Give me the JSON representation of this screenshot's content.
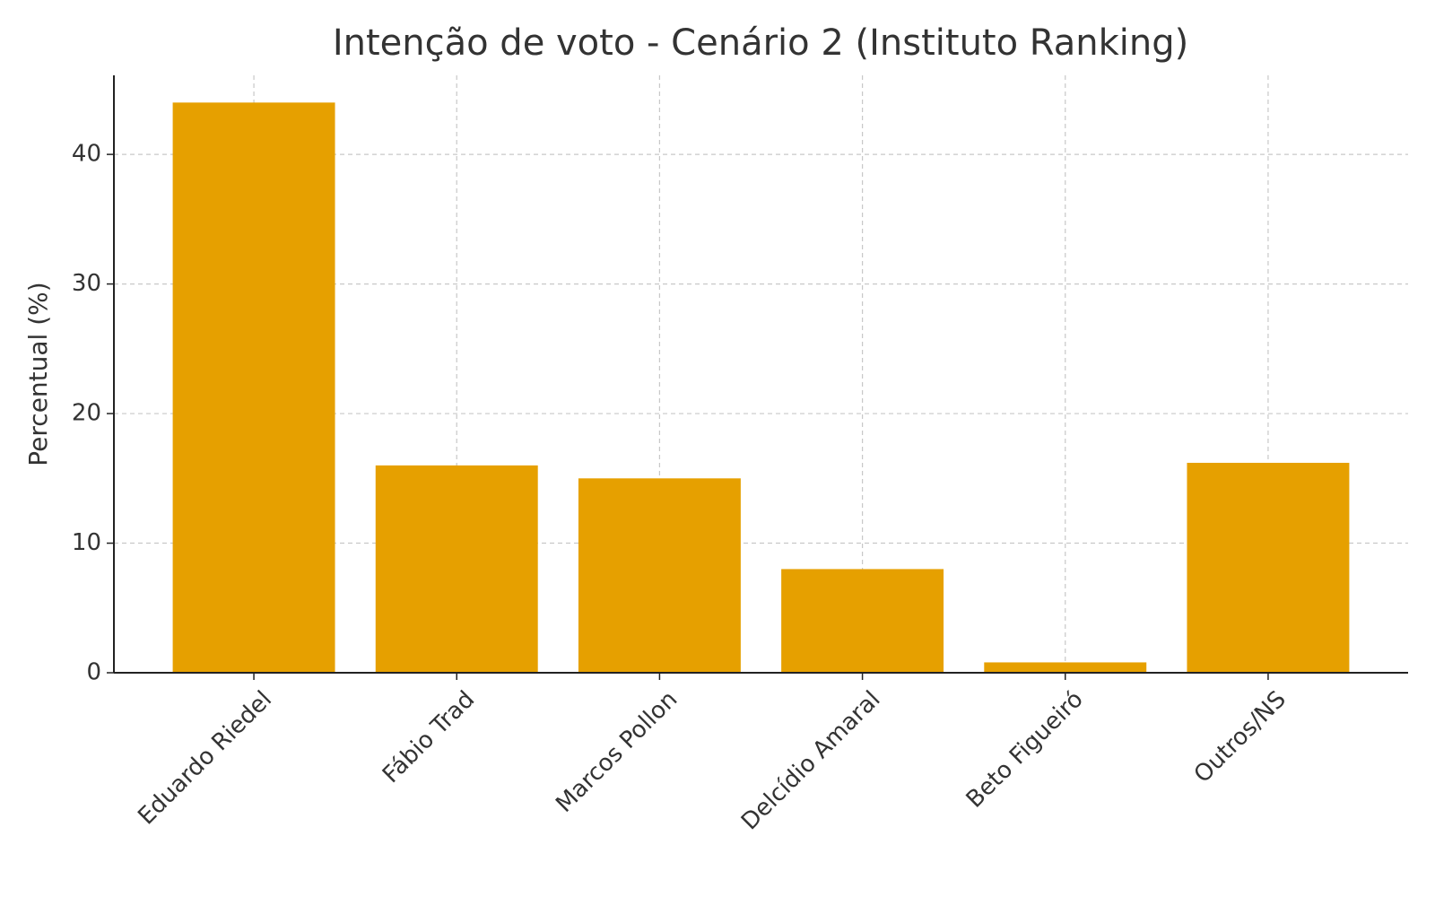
{
  "chart_data": {
    "type": "bar",
    "title": "Intenção de voto - Cenário 2 (Instituto Ranking)",
    "y_label": "Percentual (%)",
    "categories": [
      "Eduardo Riedel",
      "Fábio Trad",
      "Marcos Pollon",
      "Delcídio Amaral",
      "Beto Figueiró",
      "Outros/NS"
    ],
    "values": [
      44,
      16,
      15,
      8,
      0.8,
      16.2
    ],
    "color": "#e6a000",
    "ylim": [
      0,
      46.1
    ],
    "yticks": [
      0,
      10,
      20,
      30,
      40
    ],
    "grid": true
  }
}
